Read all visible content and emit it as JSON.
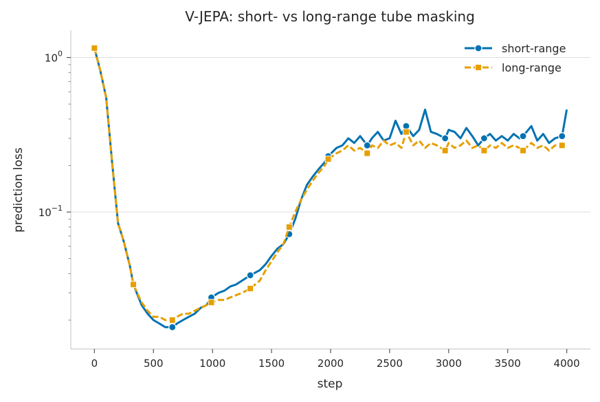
{
  "chart_data": {
    "type": "line",
    "title": "V-JEPA: short- vs long-range tube masking",
    "xlabel": "step",
    "ylabel": "prediction loss",
    "xlim": [
      -200,
      4200
    ],
    "ylim": [
      0.013,
      1.5
    ],
    "yscale": "log",
    "xticks": [
      "0",
      "500",
      "1000",
      "1500",
      "2000",
      "2500",
      "3000",
      "3500",
      "4000"
    ],
    "xtick_values": [
      0,
      500,
      1000,
      1500,
      2000,
      2500,
      3000,
      3500,
      4000
    ],
    "yticks": [
      {
        "value": 1,
        "base": "10",
        "exp": "0"
      },
      {
        "value": 0.1,
        "base": "10",
        "exp": "−1"
      }
    ],
    "grid": "horizontal",
    "legend": "top-right",
    "series": [
      {
        "name": "short-range",
        "color": "#0072b2",
        "marker": "circle",
        "markers_x": [
          0,
          330,
          660,
          990,
          1320,
          1650,
          1980,
          2310,
          2640,
          2970,
          3300,
          3630,
          3960
        ],
        "points": [
          [
            0,
            1.15
          ],
          [
            50,
            0.82
          ],
          [
            100,
            0.55
          ],
          [
            150,
            0.21
          ],
          [
            200,
            0.085
          ],
          [
            250,
            0.064
          ],
          [
            300,
            0.045
          ],
          [
            330,
            0.034
          ],
          [
            400,
            0.025
          ],
          [
            450,
            0.022
          ],
          [
            500,
            0.02
          ],
          [
            550,
            0.019
          ],
          [
            600,
            0.018
          ],
          [
            660,
            0.018
          ],
          [
            700,
            0.019
          ],
          [
            750,
            0.02
          ],
          [
            800,
            0.021
          ],
          [
            850,
            0.022
          ],
          [
            900,
            0.024
          ],
          [
            950,
            0.025
          ],
          [
            990,
            0.028
          ],
          [
            1050,
            0.03
          ],
          [
            1100,
            0.031
          ],
          [
            1150,
            0.033
          ],
          [
            1200,
            0.034
          ],
          [
            1250,
            0.036
          ],
          [
            1320,
            0.039
          ],
          [
            1400,
            0.042
          ],
          [
            1450,
            0.046
          ],
          [
            1500,
            0.052
          ],
          [
            1550,
            0.058
          ],
          [
            1600,
            0.062
          ],
          [
            1650,
            0.072
          ],
          [
            1700,
            0.09
          ],
          [
            1750,
            0.12
          ],
          [
            1800,
            0.15
          ],
          [
            1850,
            0.17
          ],
          [
            1900,
            0.19
          ],
          [
            1950,
            0.21
          ],
          [
            1980,
            0.23
          ],
          [
            2050,
            0.26
          ],
          [
            2100,
            0.27
          ],
          [
            2150,
            0.3
          ],
          [
            2200,
            0.28
          ],
          [
            2250,
            0.31
          ],
          [
            2310,
            0.27
          ],
          [
            2350,
            0.3
          ],
          [
            2400,
            0.33
          ],
          [
            2450,
            0.29
          ],
          [
            2500,
            0.3
          ],
          [
            2550,
            0.39
          ],
          [
            2600,
            0.32
          ],
          [
            2640,
            0.36
          ],
          [
            2700,
            0.31
          ],
          [
            2750,
            0.34
          ],
          [
            2800,
            0.46
          ],
          [
            2850,
            0.33
          ],
          [
            2900,
            0.32
          ],
          [
            2970,
            0.3
          ],
          [
            3000,
            0.34
          ],
          [
            3050,
            0.33
          ],
          [
            3100,
            0.3
          ],
          [
            3150,
            0.35
          ],
          [
            3200,
            0.31
          ],
          [
            3250,
            0.27
          ],
          [
            3300,
            0.3
          ],
          [
            3350,
            0.32
          ],
          [
            3400,
            0.29
          ],
          [
            3450,
            0.31
          ],
          [
            3500,
            0.29
          ],
          [
            3550,
            0.32
          ],
          [
            3600,
            0.3
          ],
          [
            3630,
            0.31
          ],
          [
            3700,
            0.36
          ],
          [
            3750,
            0.29
          ],
          [
            3800,
            0.32
          ],
          [
            3850,
            0.28
          ],
          [
            3900,
            0.3
          ],
          [
            3960,
            0.31
          ],
          [
            4000,
            0.46
          ]
        ]
      },
      {
        "name": "long-range",
        "color": "#e69f00",
        "marker": "square",
        "markers_x": [
          0,
          330,
          660,
          990,
          1320,
          1650,
          1980,
          2310,
          2640,
          2970,
          3300,
          3630,
          3960
        ],
        "points": [
          [
            0,
            1.15
          ],
          [
            50,
            0.82
          ],
          [
            100,
            0.55
          ],
          [
            150,
            0.21
          ],
          [
            200,
            0.085
          ],
          [
            250,
            0.064
          ],
          [
            300,
            0.045
          ],
          [
            330,
            0.034
          ],
          [
            400,
            0.026
          ],
          [
            450,
            0.023
          ],
          [
            500,
            0.021
          ],
          [
            550,
            0.021
          ],
          [
            600,
            0.02
          ],
          [
            660,
            0.02
          ],
          [
            700,
            0.021
          ],
          [
            750,
            0.022
          ],
          [
            800,
            0.022
          ],
          [
            850,
            0.023
          ],
          [
            900,
            0.024
          ],
          [
            950,
            0.025
          ],
          [
            990,
            0.026
          ],
          [
            1050,
            0.027
          ],
          [
            1100,
            0.027
          ],
          [
            1150,
            0.028
          ],
          [
            1200,
            0.029
          ],
          [
            1250,
            0.03
          ],
          [
            1320,
            0.032
          ],
          [
            1400,
            0.036
          ],
          [
            1450,
            0.042
          ],
          [
            1500,
            0.048
          ],
          [
            1550,
            0.055
          ],
          [
            1600,
            0.062
          ],
          [
            1650,
            0.08
          ],
          [
            1700,
            0.1
          ],
          [
            1750,
            0.12
          ],
          [
            1800,
            0.14
          ],
          [
            1850,
            0.16
          ],
          [
            1900,
            0.18
          ],
          [
            1950,
            0.2
          ],
          [
            1980,
            0.22
          ],
          [
            2050,
            0.24
          ],
          [
            2100,
            0.25
          ],
          [
            2150,
            0.27
          ],
          [
            2200,
            0.25
          ],
          [
            2250,
            0.26
          ],
          [
            2310,
            0.24
          ],
          [
            2350,
            0.27
          ],
          [
            2400,
            0.26
          ],
          [
            2450,
            0.29
          ],
          [
            2500,
            0.27
          ],
          [
            2550,
            0.28
          ],
          [
            2600,
            0.26
          ],
          [
            2640,
            0.33
          ],
          [
            2700,
            0.27
          ],
          [
            2750,
            0.29
          ],
          [
            2800,
            0.26
          ],
          [
            2850,
            0.28
          ],
          [
            2900,
            0.27
          ],
          [
            2970,
            0.25
          ],
          [
            3000,
            0.28
          ],
          [
            3050,
            0.26
          ],
          [
            3100,
            0.27
          ],
          [
            3150,
            0.29
          ],
          [
            3200,
            0.26
          ],
          [
            3250,
            0.27
          ],
          [
            3300,
            0.25
          ],
          [
            3350,
            0.27
          ],
          [
            3400,
            0.26
          ],
          [
            3450,
            0.28
          ],
          [
            3500,
            0.26
          ],
          [
            3550,
            0.27
          ],
          [
            3600,
            0.26
          ],
          [
            3630,
            0.25
          ],
          [
            3700,
            0.28
          ],
          [
            3750,
            0.26
          ],
          [
            3800,
            0.27
          ],
          [
            3850,
            0.25
          ],
          [
            3900,
            0.27
          ],
          [
            3960,
            0.27
          ],
          [
            4000,
            0.26
          ]
        ]
      }
    ]
  }
}
